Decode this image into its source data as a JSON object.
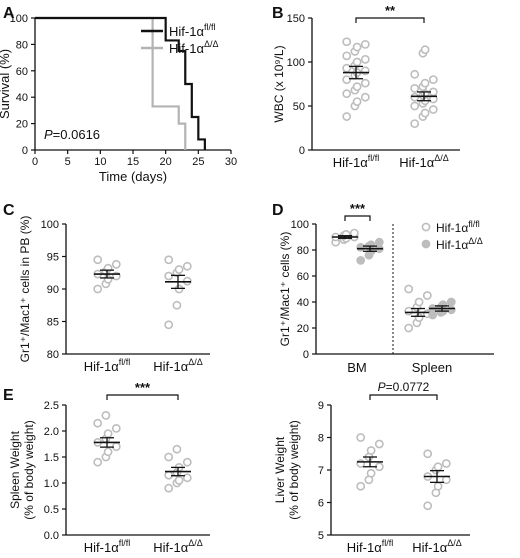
{
  "figure": {
    "panel_letters": [
      "A",
      "B",
      "C",
      "D",
      "E"
    ]
  },
  "colors": {
    "flfl": "#111111",
    "dd": "#b3b3b3",
    "dot": "#bdbdbd"
  },
  "labels": {
    "genotype_base": "Hif-1α",
    "flfl_sup": "fl/fl",
    "dd_sup": "Δ/Δ",
    "sig3": "***",
    "sig2": "**"
  },
  "chart_data": [
    {
      "panel": "A",
      "type": "line",
      "xlabel": "Time (days)",
      "ylabel": "Survival (%)",
      "xlim": [
        0,
        30
      ],
      "ylim": [
        0,
        100
      ],
      "xticks": [
        0,
        5,
        10,
        15,
        20,
        25,
        30
      ],
      "yticks": [
        0,
        20,
        40,
        60,
        80,
        100
      ],
      "annotation": "P=0.0616",
      "series": [
        {
          "name": "Hif-1αfl/fl",
          "color": "#111111",
          "x": [
            0,
            20,
            22,
            23,
            24,
            25,
            26
          ],
          "y": [
            100,
            83,
            75,
            50,
            25,
            8,
            0
          ]
        },
        {
          "name": "Hif-1αΔ/Δ",
          "color": "#b3b3b3",
          "x": [
            0,
            18,
            22,
            23
          ],
          "y": [
            100,
            33,
            20,
            0
          ]
        }
      ],
      "legend": "top-right"
    },
    {
      "panel": "B",
      "type": "scatter",
      "ylabel": "WBC (x 10⁹/L)",
      "ylim": [
        0,
        150
      ],
      "yticks": [
        0,
        50,
        100,
        150
      ],
      "groups": [
        {
          "name": "Hif-1αfl/fl",
          "mean": 88,
          "sem": 7,
          "values": [
            38,
            50,
            55,
            60,
            64,
            68,
            72,
            76,
            80,
            85,
            88,
            90,
            93,
            96,
            100,
            103,
            107,
            112,
            117,
            120,
            123
          ]
        },
        {
          "name": "Hif-1αΔ/Δ",
          "mean": 61,
          "sem": 5,
          "values": [
            30,
            38,
            42,
            46,
            50,
            53,
            56,
            58,
            60,
            62,
            64,
            66,
            70,
            72,
            76,
            80,
            86,
            110,
            114
          ]
        }
      ],
      "significance": "**"
    },
    {
      "panel": "C",
      "type": "scatter",
      "ylabel": "Gr1⁺/Mac1⁺ cells in PB (%)",
      "ylim": [
        80,
        100
      ],
      "yticks": [
        80,
        85,
        90,
        95,
        100
      ],
      "groups": [
        {
          "name": "Hif-1αfl/fl",
          "mean": 92.3,
          "sem": 0.6,
          "values": [
            90.0,
            90.8,
            91.5,
            92.0,
            92.3,
            92.7,
            93.2,
            93.8,
            94.5
          ]
        },
        {
          "name": "Hif-1αΔ/Δ",
          "mean": 91.1,
          "sem": 1.0,
          "values": [
            84.5,
            87.5,
            90.0,
            91.2,
            92.0,
            92.5,
            93.0,
            93.5,
            94.5
          ]
        }
      ]
    },
    {
      "panel": "D",
      "type": "scatter",
      "ylabel": "Gr1⁺/Mac1⁺ cells (%)",
      "ylim": [
        0,
        100
      ],
      "yticks": [
        0,
        20,
        40,
        60,
        80,
        100
      ],
      "categories": [
        "BM",
        "Spleen"
      ],
      "legend": "top-right",
      "groups": [
        {
          "name": "Hif-1αfl/fl",
          "category": "BM",
          "open": true,
          "mean": 90,
          "sem": 1,
          "values": [
            86,
            88,
            89,
            90,
            90,
            91,
            92,
            93
          ]
        },
        {
          "name": "Hif-1αΔ/Δ",
          "category": "BM",
          "open": false,
          "mean": 81,
          "sem": 2,
          "values": [
            72,
            76,
            79,
            81,
            82,
            83,
            84,
            86
          ]
        },
        {
          "name": "Hif-1αfl/fl",
          "category": "Spleen",
          "open": true,
          "mean": 32,
          "sem": 3,
          "values": [
            20,
            24,
            28,
            31,
            33,
            36,
            40,
            45,
            50
          ]
        },
        {
          "name": "Hif-1αΔ/Δ",
          "category": "Spleen",
          "open": false,
          "mean": 35,
          "sem": 2,
          "values": [
            30,
            32,
            33,
            34,
            35,
            36,
            38,
            40
          ]
        }
      ],
      "significance": "***"
    },
    {
      "panel": "E1",
      "type": "scatter",
      "ylabel": [
        "Spleen Weight",
        "(% of body weight)"
      ],
      "ylim": [
        0,
        2.5
      ],
      "yticks": [
        0.0,
        0.5,
        1.0,
        1.5,
        2.0,
        2.5
      ],
      "groups": [
        {
          "name": "Hif-1αfl/fl",
          "mean": 1.78,
          "sem": 0.09,
          "values": [
            1.4,
            1.5,
            1.6,
            1.7,
            1.78,
            1.85,
            1.95,
            2.05,
            2.15,
            2.3
          ]
        },
        {
          "name": "Hif-1αΔ/Δ",
          "mean": 1.22,
          "sem": 0.08,
          "values": [
            0.9,
            1.0,
            1.05,
            1.1,
            1.15,
            1.2,
            1.3,
            1.4,
            1.5,
            1.65
          ]
        }
      ],
      "significance": "***"
    },
    {
      "panel": "E2",
      "type": "scatter",
      "ylabel": [
        "Liver Weight",
        "(% of body weight)"
      ],
      "ylim": [
        5,
        9
      ],
      "yticks": [
        5,
        6,
        7,
        8,
        9
      ],
      "groups": [
        {
          "name": "Hif-1αfl/fl",
          "mean": 7.25,
          "sem": 0.15,
          "values": [
            6.5,
            6.7,
            6.9,
            7.1,
            7.2,
            7.4,
            7.6,
            7.8,
            8.0
          ]
        },
        {
          "name": "Hif-1αΔ/Δ",
          "mean": 6.8,
          "sem": 0.18,
          "values": [
            5.9,
            6.3,
            6.5,
            6.7,
            6.8,
            7.0,
            7.1,
            7.2,
            7.5
          ]
        }
      ],
      "significance": "P=0.0772"
    }
  ]
}
